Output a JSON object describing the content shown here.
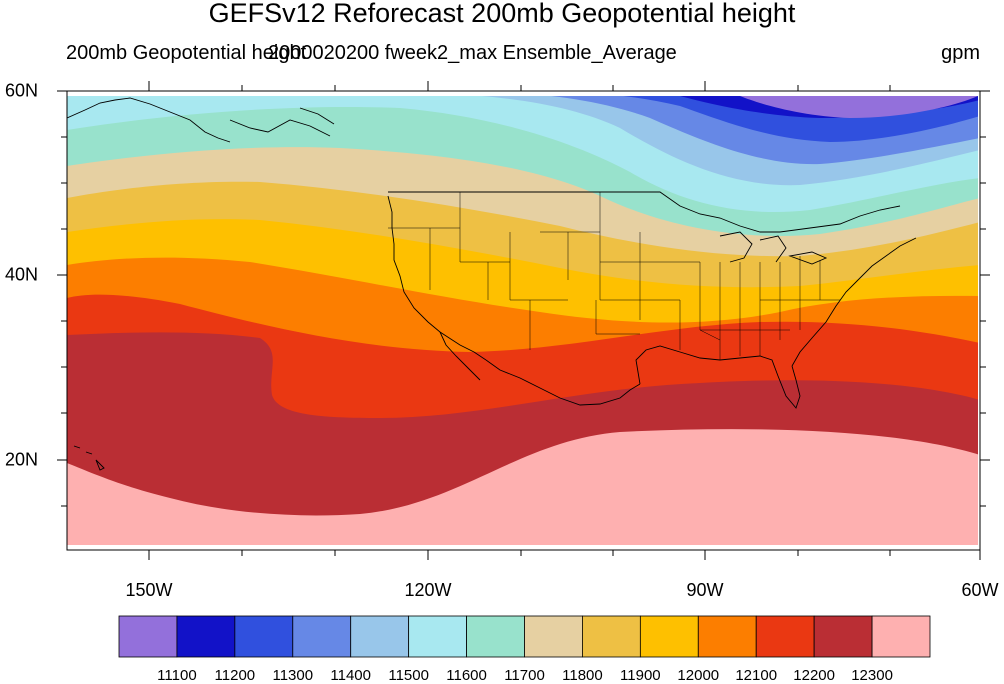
{
  "title": "GEFSv12 Reforecast 200mb Geopotential height",
  "subtitle_left": "200mb Geopotential height",
  "subtitle_center": "2000020200 fweek2_max Ensemble_Average",
  "units": "gpm",
  "lat_labels": [
    "60N",
    "40N",
    "20N"
  ],
  "lon_labels": [
    "150W",
    "120W",
    "90W",
    "60W"
  ],
  "colorbar": {
    "labels": [
      "11100",
      "11200",
      "11300",
      "11400",
      "11500",
      "11600",
      "11700",
      "11800",
      "11900",
      "12000",
      "12100",
      "12200",
      "12300"
    ],
    "colors": [
      "#9370db",
      "#1212c8",
      "#3050de",
      "#6688e6",
      "#98c6ea",
      "#a8e8f0",
      "#98e2cc",
      "#e6d0a2",
      "#eec044",
      "#fec000",
      "#fc7e00",
      "#ea3812",
      "#ba2e34",
      "#feb0b0"
    ]
  }
}
